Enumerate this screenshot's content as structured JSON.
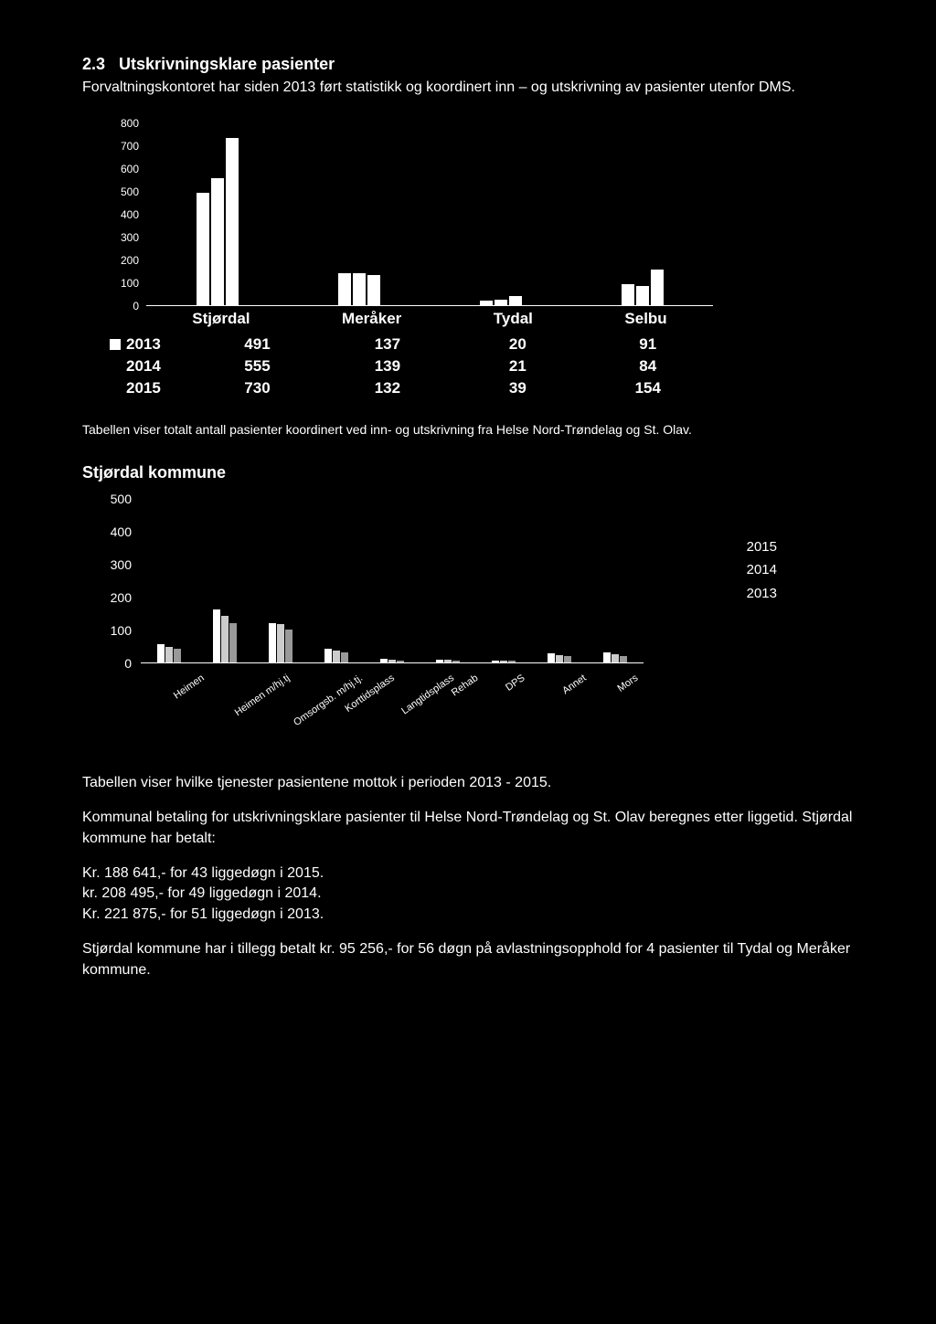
{
  "section": {
    "number": "2.3",
    "title": "Utskrivningsklare pasienter",
    "intro": "Forvaltningskontoret har siden 2013 ført statistikk og koordinert inn – og utskrivning av pasienter utenfor DMS."
  },
  "chart1": {
    "type": "bar",
    "ylim": [
      0,
      800
    ],
    "ytick_step": 100,
    "yticks": [
      800,
      700,
      600,
      500,
      400,
      300,
      200,
      100,
      0
    ],
    "categories": [
      "Stjørdal",
      "Meråker",
      "Tydal",
      "Selbu"
    ],
    "series": [
      {
        "year": "2013",
        "values": [
          491,
          137,
          20,
          91
        ],
        "has_square": true
      },
      {
        "year": "2014",
        "values": [
          555,
          139,
          21,
          84
        ],
        "has_square": false
      },
      {
        "year": "2015",
        "values": [
          730,
          132,
          39,
          154
        ],
        "has_square": false
      }
    ],
    "bar_color": "#ffffff",
    "background_color": "#000000",
    "caption": "Tabellen viser totalt antall pasienter koordinert ved inn- og utskrivning fra Helse Nord-Trøndelag og St. Olav."
  },
  "chart2": {
    "heading": "Stjørdal kommune",
    "type": "bar",
    "ylim": [
      0,
      500
    ],
    "ytick_step": 100,
    "yticks": [
      500,
      400,
      300,
      200,
      100,
      0
    ],
    "categories": [
      "Heimen",
      "Heimen m/hj.tj",
      "Omsorgsb. m/hj.tj.",
      "Korttidsplass",
      "Langtidsplass",
      "Rehab",
      "DPS",
      "Annet",
      "Mors"
    ],
    "legend": [
      "2015",
      "2014",
      "2013"
    ],
    "series_2015": [
      55,
      160,
      120,
      40,
      10,
      8,
      6,
      28,
      30
    ],
    "series_2014": [
      48,
      140,
      115,
      35,
      8,
      7,
      5,
      22,
      25
    ],
    "series_2013": [
      40,
      120,
      100,
      30,
      6,
      6,
      4,
      18,
      20
    ],
    "colors": {
      "2015": "#ffffff",
      "2014": "#cccccc",
      "2013": "#999999"
    },
    "caption": "Tabellen viser hvilke tjenester pasientene mottok i perioden 2013 - 2015."
  },
  "body": {
    "p1": "Kommunal betaling for utskrivningsklare pasienter til Helse Nord-Trøndelag og St. Olav beregnes etter liggetid. Stjørdal kommune har betalt:",
    "payments": [
      "Kr. 188 641,- for 43 liggedøgn i 2015.",
      "kr. 208 495,- for 49 liggedøgn i 2014.",
      "Kr. 221 875,- for 51 liggedøgn i 2013."
    ],
    "p2": "Stjørdal kommune har i tillegg betalt kr. 95 256,- for 56 døgn på avlastningsopphold for 4 pasienter til Tydal og Meråker kommune."
  }
}
